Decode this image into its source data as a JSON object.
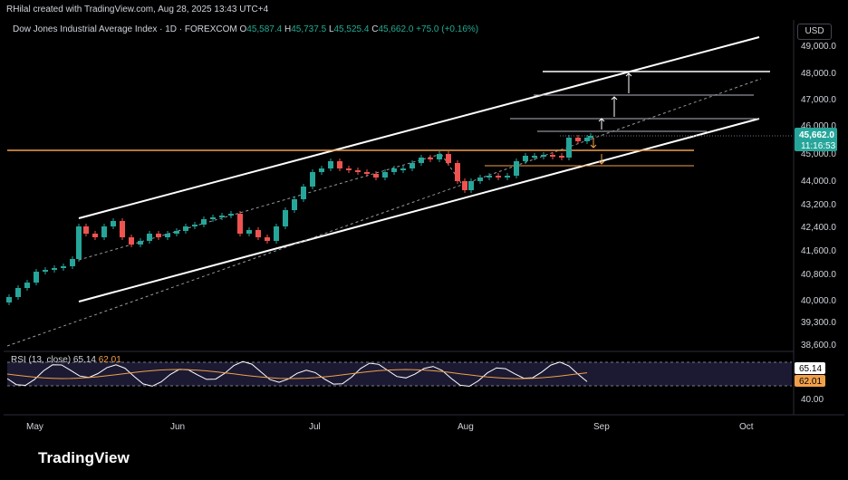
{
  "header": {
    "caption": "RHilal created with TradingView.com, Aug 28, 2025 13:43 UTC+4"
  },
  "symbol": {
    "name": "Dow Jones Industrial Average Index · 1D · FOREXCOM",
    "o_label": "O",
    "o": "45,587.4",
    "h_label": "H",
    "h": "45,737.5",
    "l_label": "L",
    "l": "45,525.4",
    "c_label": "C",
    "c": "45,662.0",
    "change": "+75.0 (+0.16%)"
  },
  "currency": "USD",
  "price_axis": {
    "ticks": [
      "49,000.0",
      "48,000.0",
      "47,000.0",
      "46,000.0",
      "45,000.0",
      "44,000.0",
      "43,200.0",
      "42,400.0",
      "41,600.0",
      "40,800.0",
      "40,000.0",
      "39,300.0",
      "38,600.0"
    ],
    "last_price": "45,662.0",
    "countdown": "11:16:53"
  },
  "rsi": {
    "label": "RSI (13, close)",
    "value": "65.14",
    "ma_value": "62.01",
    "axis_label": "40.00"
  },
  "time_axis": {
    "labels": [
      "May",
      "Jun",
      "Jul",
      "Aug",
      "Sep",
      "Oct"
    ]
  },
  "brand": {
    "name": "TradingView"
  },
  "colors": {
    "up": "#26a69a",
    "down": "#ef5350",
    "level": "#f0a04b",
    "rsi": "#ffffff",
    "rsi_ma": "#f0a04b"
  }
}
